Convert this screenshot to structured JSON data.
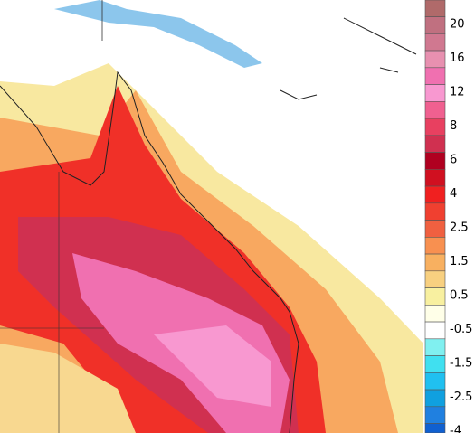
{
  "colorbar": {
    "labels": [
      "20",
      "16",
      "12",
      "8",
      "6",
      "4",
      "2.5",
      "1.5",
      "0.5",
      "-0.5",
      "-1.5",
      "-2.5",
      "-4"
    ],
    "colors": [
      "#b06a6a",
      "#c07080",
      "#d07890",
      "#e890b0",
      "#f070b0",
      "#f898d0",
      "#f06090",
      "#e84060",
      "#d03050",
      "#b00020",
      "#d01020",
      "#f02020",
      "#f04030",
      "#f06040",
      "#f89050",
      "#f8b060",
      "#f8d080",
      "#f8f0a0",
      "#ffffe8",
      "#ffffff",
      "#80f0f0",
      "#40e0f0",
      "#20c0f0",
      "#10a0e0",
      "#2080e0",
      "#1060d0"
    ]
  }
}
